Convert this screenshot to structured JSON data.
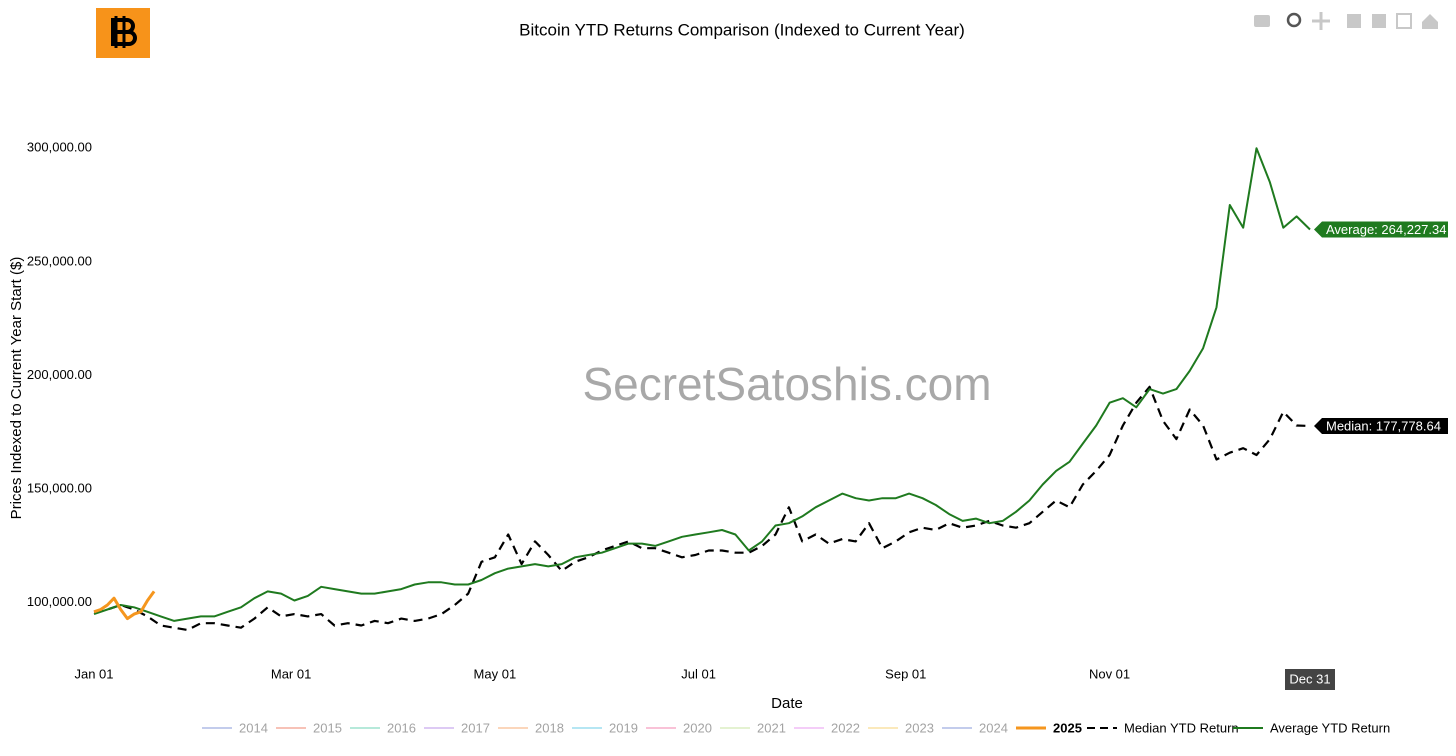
{
  "chart_data": {
    "type": "line",
    "title": "Bitcoin YTD Returns Comparison (Indexed to Current Year)",
    "xlabel": "Date",
    "ylabel": "Prices Indexed to Current Year Start ($)",
    "watermark": "SecretSatoshis.com",
    "xlim": [
      0,
      364
    ],
    "ylim": [
      77000,
      330000
    ],
    "xticks": [
      {
        "value": 0,
        "label": "Jan 01"
      },
      {
        "value": 59,
        "label": "Mar 01"
      },
      {
        "value": 120,
        "label": "May 01"
      },
      {
        "value": 181,
        "label": "Jul 01"
      },
      {
        "value": 243,
        "label": "Sep 01"
      },
      {
        "value": 304,
        "label": "Nov 01"
      }
    ],
    "yticks": [
      {
        "value": 100000,
        "label": "100,000.00"
      },
      {
        "value": 150000,
        "label": "150,000.00"
      },
      {
        "value": 200000,
        "label": "200,000.00"
      },
      {
        "value": 250000,
        "label": "250,000.00"
      },
      {
        "value": 300000,
        "label": "300,000.00"
      }
    ],
    "grid": false,
    "x_hover_label": {
      "value": 364,
      "label": "Dec 31"
    },
    "legend_hidden": [
      {
        "name": "2014",
        "color": "#7b8fd6"
      },
      {
        "name": "2015",
        "color": "#ef7a62"
      },
      {
        "name": "2016",
        "color": "#5fcfae"
      },
      {
        "name": "2017",
        "color": "#b58ce8"
      },
      {
        "name": "2018",
        "color": "#f7a66a"
      },
      {
        "name": "2019",
        "color": "#5cc8e6"
      },
      {
        "name": "2020",
        "color": "#f27aa8"
      },
      {
        "name": "2021",
        "color": "#c4e49a"
      },
      {
        "name": "2022",
        "color": "#e792f0"
      },
      {
        "name": "2023",
        "color": "#f7d06a"
      },
      {
        "name": "2024",
        "color": "#7b8fd6"
      }
    ],
    "series": [
      {
        "name": "2025",
        "color": "#f5961e",
        "dash": false,
        "x": [
          0,
          2,
          4,
          6,
          8,
          10,
          12,
          14,
          16,
          18
        ],
        "values": [
          96000,
          97000,
          99000,
          102000,
          97000,
          93000,
          95000,
          96000,
          101000,
          105000
        ]
      },
      {
        "name": "Median YTD Return",
        "color": "#000000",
        "dash": true,
        "annotation": "Median: 177,778.64",
        "x": [
          0,
          4,
          8,
          12,
          16,
          20,
          24,
          28,
          32,
          36,
          40,
          44,
          48,
          52,
          56,
          60,
          64,
          68,
          72,
          76,
          80,
          84,
          88,
          92,
          96,
          100,
          104,
          108,
          112,
          116,
          120,
          124,
          128,
          132,
          136,
          140,
          144,
          148,
          152,
          156,
          160,
          164,
          168,
          172,
          176,
          180,
          184,
          188,
          192,
          196,
          200,
          204,
          208,
          212,
          216,
          220,
          224,
          228,
          232,
          236,
          240,
          244,
          248,
          252,
          256,
          260,
          264,
          268,
          272,
          276,
          280,
          284,
          288,
          292,
          296,
          300,
          304,
          308,
          312,
          316,
          320,
          324,
          328,
          332,
          336,
          340,
          344,
          348,
          352,
          356,
          360,
          364
        ],
        "values": [
          96000,
          97000,
          99000,
          97000,
          94000,
          90000,
          89000,
          88000,
          91000,
          91000,
          90000,
          89000,
          93000,
          98000,
          94000,
          95000,
          94000,
          95000,
          90000,
          91000,
          90000,
          92000,
          91000,
          93000,
          92000,
          93000,
          95000,
          99000,
          104000,
          118000,
          120000,
          130000,
          117000,
          127000,
          121000,
          114000,
          118000,
          120000,
          123000,
          125000,
          127000,
          124000,
          124000,
          122000,
          120000,
          121000,
          123000,
          123000,
          122000,
          122000,
          125000,
          130000,
          142000,
          127000,
          130000,
          126000,
          128000,
          127000,
          135000,
          124000,
          127000,
          131000,
          133000,
          132000,
          135000,
          133000,
          134000,
          136000,
          134000,
          133000,
          135000,
          140000,
          145000,
          142000,
          152000,
          158000,
          165000,
          178000,
          188000,
          195000,
          180000,
          172000,
          185000,
          178000,
          163000,
          166000,
          168000,
          165000,
          172000,
          184000,
          178000,
          177778.64
        ]
      },
      {
        "name": "Average YTD Return",
        "color": "#1f7a1f",
        "dash": false,
        "annotation": "Average: 264,227.34",
        "x": [
          0,
          4,
          8,
          12,
          16,
          20,
          24,
          28,
          32,
          36,
          40,
          44,
          48,
          52,
          56,
          60,
          64,
          68,
          72,
          76,
          80,
          84,
          88,
          92,
          96,
          100,
          104,
          108,
          112,
          116,
          120,
          124,
          128,
          132,
          136,
          140,
          144,
          148,
          152,
          156,
          160,
          164,
          168,
          172,
          176,
          180,
          184,
          188,
          192,
          196,
          200,
          204,
          208,
          212,
          216,
          220,
          224,
          228,
          232,
          236,
          240,
          244,
          248,
          252,
          256,
          260,
          264,
          268,
          272,
          276,
          280,
          284,
          288,
          292,
          296,
          300,
          304,
          308,
          312,
          316,
          320,
          324,
          328,
          332,
          336,
          340,
          344,
          348,
          352,
          356,
          360,
          364
        ],
        "values": [
          95000,
          97000,
          99000,
          98000,
          96000,
          94000,
          92000,
          93000,
          94000,
          94000,
          96000,
          98000,
          102000,
          105000,
          104000,
          101000,
          103000,
          107000,
          106000,
          105000,
          104000,
          104000,
          105000,
          106000,
          108000,
          109000,
          109000,
          108000,
          108000,
          110000,
          113000,
          115000,
          116000,
          117000,
          116000,
          117000,
          120000,
          121000,
          122000,
          124000,
          126000,
          126000,
          125000,
          127000,
          129000,
          130000,
          131000,
          132000,
          130000,
          123000,
          127000,
          134000,
          135000,
          138000,
          142000,
          145000,
          148000,
          146000,
          145000,
          146000,
          146000,
          148000,
          146000,
          143000,
          139000,
          136000,
          137000,
          135000,
          136000,
          140000,
          145000,
          152000,
          158000,
          162000,
          170000,
          178000,
          188000,
          190000,
          186000,
          194000,
          192000,
          194000,
          202000,
          212000,
          230000,
          275000,
          265000,
          300000,
          285000,
          265000,
          270000,
          264227.34
        ]
      }
    ]
  }
}
